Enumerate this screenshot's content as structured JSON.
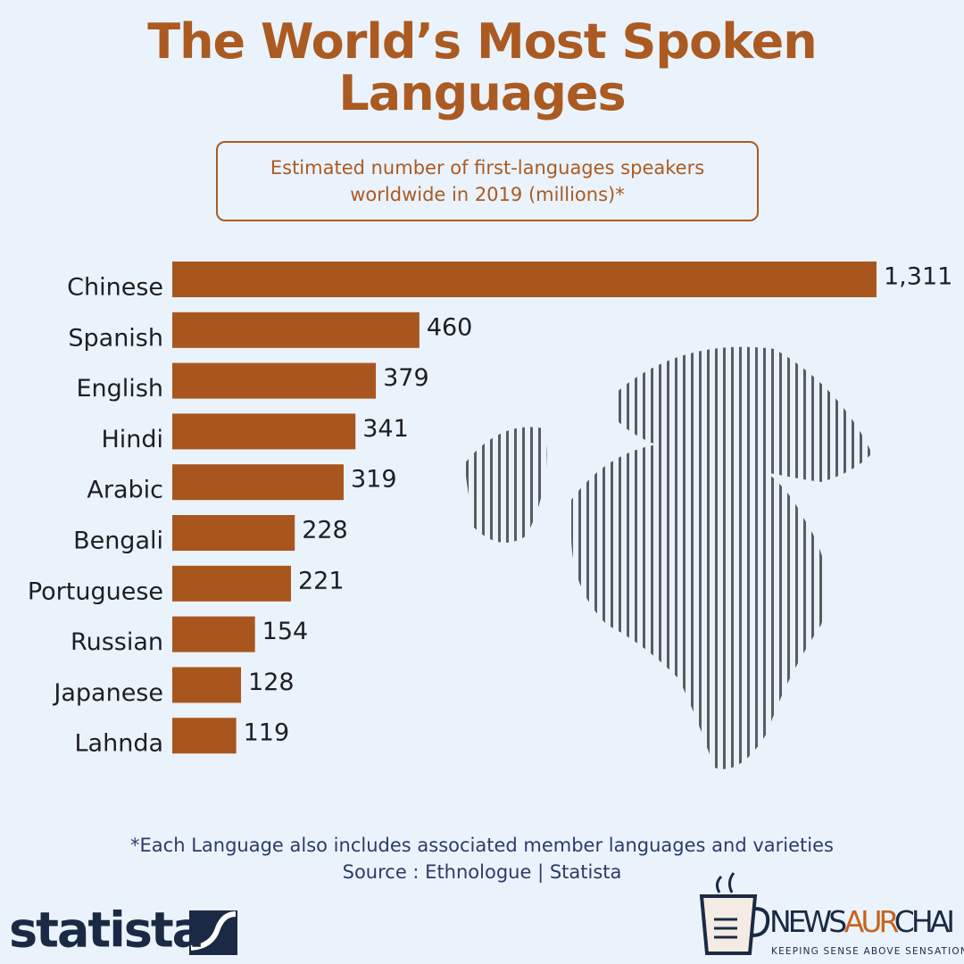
{
  "chart_data": {
    "type": "bar",
    "orientation": "horizontal",
    "title": "The World’s Most Spoken Languages",
    "subtitle": "Estimated number of first-languages speakers worldwide in 2019 (millions)*",
    "categories": [
      "Chinese",
      "Spanish",
      "English",
      "Hindi",
      "Arabic",
      "Bengali",
      "Portuguese",
      "Russian",
      "Japanese",
      "Lahnda"
    ],
    "values": [
      1311,
      460,
      379,
      341,
      319,
      228,
      221,
      154,
      128,
      119
    ],
    "value_labels": [
      "1,311",
      "460",
      "379",
      "341",
      "319",
      "228",
      "221",
      "154",
      "128",
      "119"
    ],
    "color": "#a9561e",
    "footnote": "*Each Language also includes associated member languages and varieties",
    "source": "Source : Ethnologue | Statista"
  },
  "branding": {
    "statista": "statista",
    "newsaurchai_parts": [
      "NEWS",
      "AUR",
      "CHAI"
    ],
    "tagline": "KEEPING SENSE ABOVE SENSATION"
  }
}
